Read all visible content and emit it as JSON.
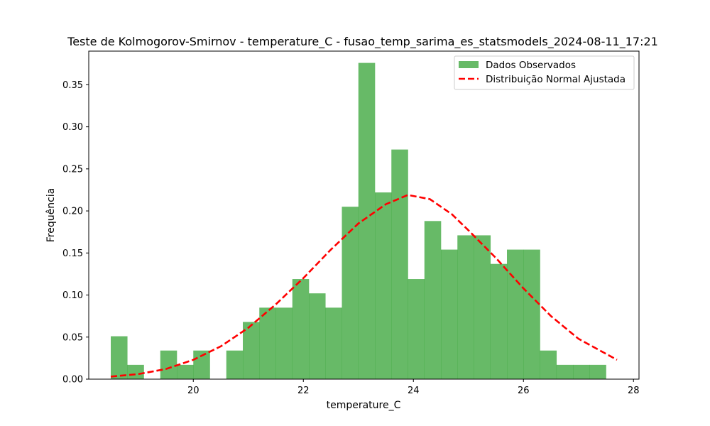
{
  "chart_data": {
    "type": "bar",
    "title": "Teste de Kolmogorov-Smirnov - temperature_C - fusao_temp_sarima_es_statsmodels_2024-08-11_17:21",
    "xlabel": "temperature_C",
    "ylabel": "Frequência",
    "xlim": [
      18.1,
      28.1
    ],
    "ylim": [
      0,
      0.39
    ],
    "xticks": [
      20,
      22,
      24,
      26,
      28
    ],
    "yticks": [
      0.0,
      0.05,
      0.1,
      0.15,
      0.2,
      0.25,
      0.3,
      0.35
    ],
    "xtick_labels": [
      "20",
      "22",
      "24",
      "26",
      "28"
    ],
    "ytick_labels": [
      "0.00",
      "0.05",
      "0.10",
      "0.15",
      "0.20",
      "0.25",
      "0.30",
      "0.35"
    ],
    "grid": false,
    "legend_position": "upper right",
    "histogram": {
      "name": "Dados Observados",
      "color": "#2ca02c",
      "bin_start": 18.5,
      "bin_width": 0.3,
      "values": [
        0.051,
        0.017,
        0.0,
        0.034,
        0.017,
        0.034,
        0.0,
        0.034,
        0.068,
        0.085,
        0.085,
        0.119,
        0.102,
        0.085,
        0.205,
        0.376,
        0.222,
        0.273,
        0.119,
        0.188,
        0.154,
        0.171,
        0.171,
        0.137,
        0.154,
        0.154,
        0.034,
        0.017,
        0.017,
        0.017
      ]
    },
    "fit_line": {
      "name": "Distribuição Normal Ajustada",
      "color": "#ff0000",
      "style": "dashed",
      "x": [
        18.5,
        19.0,
        19.5,
        20.0,
        20.5,
        21.0,
        21.5,
        22.0,
        22.5,
        23.0,
        23.5,
        23.9,
        24.3,
        24.7,
        25.0,
        25.5,
        26.0,
        26.5,
        27.0,
        27.7
      ],
      "y": [
        0.003,
        0.006,
        0.012,
        0.023,
        0.039,
        0.061,
        0.089,
        0.12,
        0.154,
        0.185,
        0.208,
        0.219,
        0.214,
        0.196,
        0.177,
        0.144,
        0.108,
        0.075,
        0.048,
        0.023
      ]
    }
  }
}
